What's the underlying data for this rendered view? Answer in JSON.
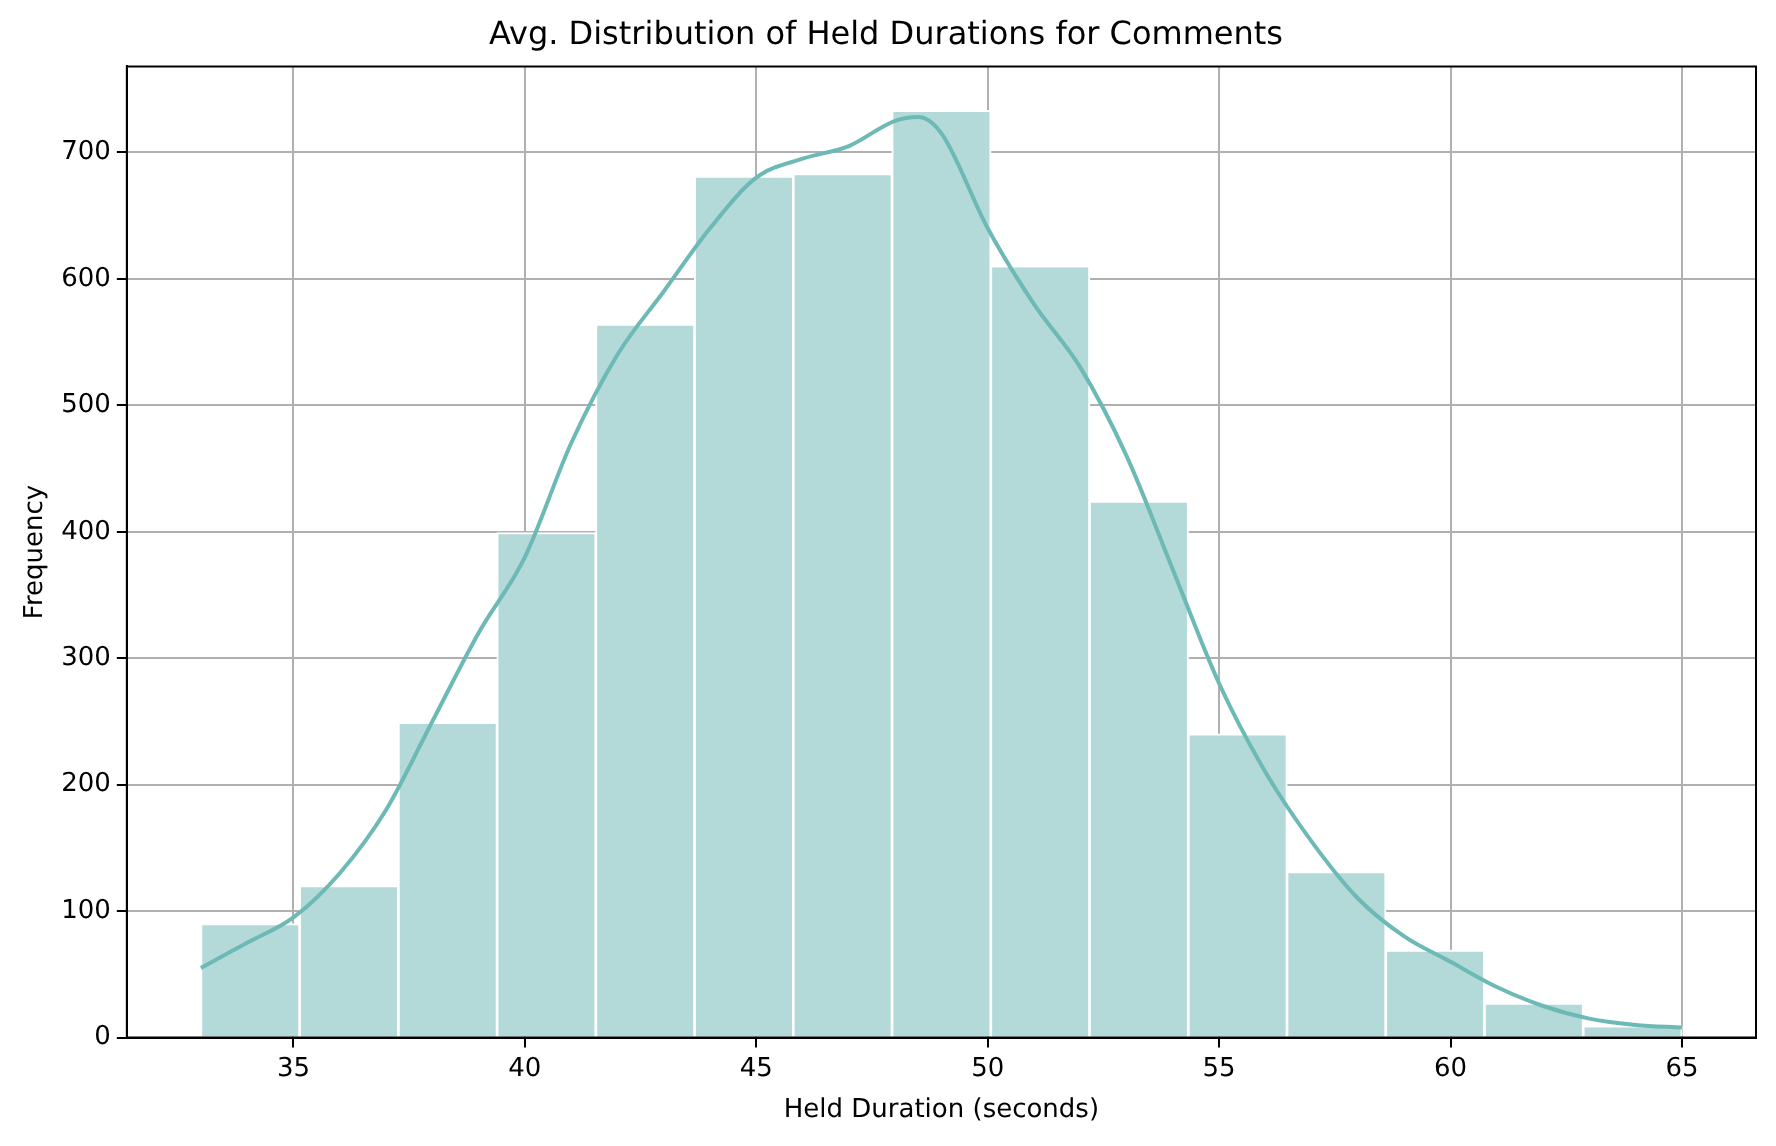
{
  "chart_data": {
    "type": "histogram",
    "title": "Avg. Distribution of Held Durations for Comments",
    "xlabel": "Held Duration (seconds)",
    "ylabel": "Frequency",
    "bins": [
      33,
      35.133,
      37.267,
      39.4,
      41.533,
      43.667,
      45.8,
      47.933,
      50.067,
      52.2,
      54.333,
      56.467,
      58.6,
      60.733,
      62.867,
      65
    ],
    "values": [
      90,
      120,
      249,
      399,
      564,
      681,
      683,
      733,
      610,
      424,
      240,
      131,
      69,
      27,
      9
    ],
    "color": "#b3d9d9",
    "series": [
      {
        "type": "line",
        "color": "#6cb9b5",
        "x": [
          33,
          34,
          35,
          36,
          37,
          38,
          39,
          40,
          41,
          42,
          43,
          44,
          45,
          46,
          47,
          48,
          48.5,
          49,
          50,
          51,
          52,
          53,
          54,
          55,
          56,
          57,
          58,
          59,
          60,
          61,
          62,
          63,
          64,
          65
        ],
        "values": [
          55,
          75,
          95,
          130,
          180,
          250,
          320,
          380,
          470,
          540,
          590,
          640,
          680,
          695,
          705,
          725,
          728,
          715,
          640,
          580,
          530,
          460,
          370,
          280,
          210,
          155,
          110,
          80,
          60,
          40,
          25,
          15,
          10,
          8
        ]
      }
    ],
    "xlim": [
      31.4,
      66.6
    ],
    "ylim": [
      0,
      768
    ],
    "xticks": [
      35,
      40,
      45,
      50,
      55,
      60,
      65
    ],
    "yticks": [
      0,
      100,
      200,
      300,
      400,
      500,
      600,
      700
    ],
    "grid": true,
    "legend": false
  }
}
